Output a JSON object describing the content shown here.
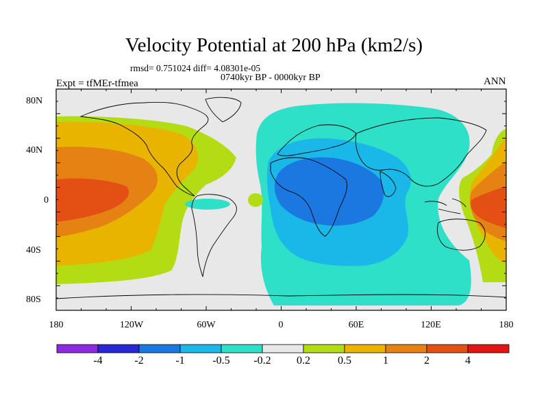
{
  "header": {
    "title": "Velocity Potential at 200 hPa (km2/s)",
    "stats": "rmsd= 0.751024 diff= 4.08301e-05",
    "period": "0740kyr BP - 0000kyr BP",
    "experiment": "Expt = tfMEr-tfmea",
    "season": "ANN"
  },
  "axes": {
    "lat_labels": [
      "80N",
      "40N",
      "0",
      "40S",
      "80S"
    ],
    "lon_labels": [
      "180",
      "120W",
      "60W",
      "0",
      "60E",
      "120E",
      "180"
    ]
  },
  "colorbar": {
    "colors": [
      "#8a2be2",
      "#2828d8",
      "#1a78e0",
      "#1ab8e8",
      "#2ee0c8",
      "#e8e8e8",
      "#b4dc14",
      "#e8b400",
      "#e48214",
      "#e45014",
      "#e41414"
    ],
    "labels": [
      "-4",
      "-2",
      "-1",
      "-0.5",
      "-0.2",
      "0.2",
      "0.5",
      "1",
      "2",
      "4"
    ]
  },
  "map_colors": {
    "ocean_background": "#e8e8e8",
    "coastline": "#000000"
  }
}
